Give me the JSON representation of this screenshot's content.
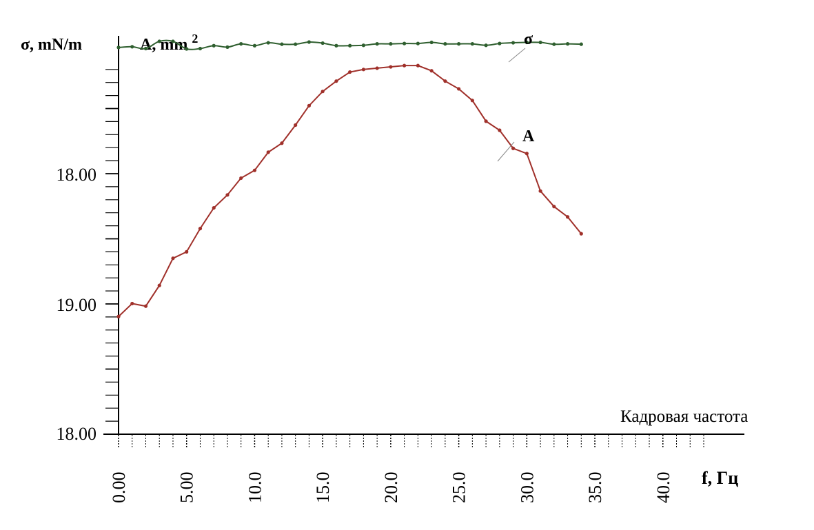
{
  "chart_data": {
    "type": "line",
    "y_axis_labels": {
      "sigma": "σ, mN/m",
      "area_prefix": "A, mm",
      "area_sup": "2"
    },
    "y_tick_labels": [
      "18.00",
      "19.00",
      "18.00"
    ],
    "x_tick_labels": [
      "0.00",
      "5.00",
      "10.0",
      "15.0",
      "20.0",
      "25.0",
      "30.0",
      "35.0",
      "40.0"
    ],
    "x_label": "f, Гц",
    "annotation": "Кадровая частота",
    "series": [
      {
        "name": "σ",
        "color": "#2f5f2f",
        "x": [
          0,
          1,
          2,
          3,
          4,
          5,
          6,
          7,
          8,
          9,
          10,
          11,
          12,
          13,
          14,
          15,
          16,
          17,
          18,
          19,
          20,
          21,
          22,
          23,
          24,
          25,
          26,
          27,
          28,
          29,
          30,
          31,
          32,
          33,
          34
        ],
        "y": [
          0.5,
          0.52,
          0.47,
          0.67,
          0.67,
          0.46,
          0.47,
          0.55,
          0.51,
          0.6,
          0.55,
          0.63,
          0.59,
          0.59,
          0.65,
          0.62,
          0.55,
          0.55,
          0.56,
          0.6,
          0.6,
          0.61,
          0.61,
          0.64,
          0.6,
          0.6,
          0.6,
          0.56,
          0.61,
          0.63,
          0.64,
          0.64,
          0.59,
          0.6,
          0.59
        ]
      },
      {
        "name": "A",
        "color": "#a0302a",
        "x": [
          0,
          1,
          2,
          3,
          4,
          5,
          6,
          7,
          8,
          9,
          10,
          11,
          12,
          13,
          14,
          15,
          16,
          17,
          18,
          19,
          20,
          21,
          22,
          23,
          24,
          25,
          26,
          27,
          28,
          29,
          30,
          31,
          32,
          33,
          34
        ],
        "y": [
          18.78,
          18.88,
          18.86,
          19.02,
          19.23,
          19.28,
          19.46,
          19.62,
          19.72,
          19.85,
          19.91,
          20.05,
          20.12,
          20.26,
          20.41,
          20.52,
          20.6,
          20.67,
          20.69,
          20.7,
          20.71,
          20.72,
          20.72,
          20.68,
          20.6,
          20.54,
          20.45,
          20.29,
          20.22,
          20.08,
          20.04,
          19.75,
          19.63,
          19.55,
          19.42
        ]
      }
    ],
    "xlim": [
      0,
      43
    ],
    "ylim": [
      17.87,
      20.95
    ]
  }
}
